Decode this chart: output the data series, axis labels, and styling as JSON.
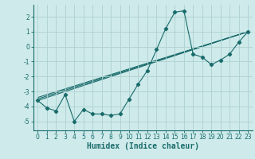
{
  "xlabel": "Humidex (Indice chaleur)",
  "background_color": "#ceeaea",
  "grid_color": "#aed0d0",
  "line_color": "#1a6b6b",
  "xlim": [
    -0.5,
    23.5
  ],
  "ylim": [
    -5.6,
    2.8
  ],
  "yticks": [
    2,
    1,
    0,
    -1,
    -2,
    -3,
    -4,
    -5
  ],
  "xticks": [
    0,
    1,
    2,
    3,
    4,
    5,
    6,
    7,
    8,
    9,
    10,
    11,
    12,
    13,
    14,
    15,
    16,
    17,
    18,
    19,
    20,
    21,
    22,
    23
  ],
  "main_x": [
    0,
    1,
    2,
    3,
    4,
    5,
    6,
    7,
    8,
    9,
    10,
    11,
    12,
    13,
    14,
    15,
    16,
    17,
    18,
    19,
    20,
    21,
    22,
    23
  ],
  "main_y": [
    -3.6,
    -4.1,
    -4.3,
    -3.2,
    -5.0,
    -4.2,
    -4.5,
    -4.5,
    -4.6,
    -4.5,
    -3.5,
    -2.5,
    -1.6,
    -0.2,
    1.2,
    2.3,
    2.4,
    -0.5,
    -0.7,
    -1.2,
    -0.9,
    -0.5,
    0.3,
    1.0
  ],
  "trend1_x": [
    0,
    23
  ],
  "trend1_y": [
    -3.6,
    1.0
  ],
  "trend2_x": [
    0,
    23
  ],
  "trend2_y": [
    -3.5,
    1.0
  ],
  "trend3_x": [
    0,
    23
  ],
  "trend3_y": [
    -3.4,
    1.0
  ],
  "xlabel_fontsize": 7,
  "tick_fontsize": 5.5,
  "linewidth": 0.8,
  "marker_size": 2.2
}
